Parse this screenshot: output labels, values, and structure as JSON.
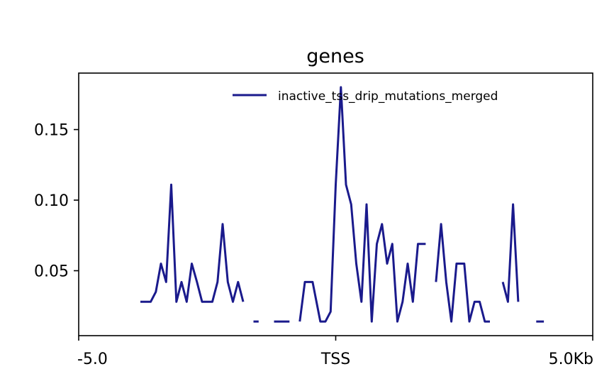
{
  "chart_data": {
    "type": "line",
    "title": "genes",
    "xlabel": "",
    "ylabel": "",
    "xlim": [
      -5.0,
      5.0
    ],
    "ylim": [
      0.004,
      0.19
    ],
    "x_ticks": [
      {
        "value": -5.0,
        "label": "-5.0"
      },
      {
        "value": 0,
        "label": "TSS"
      },
      {
        "value": 5.0,
        "label": "5.0Kb"
      }
    ],
    "y_ticks": [
      {
        "value": 0.05,
        "label": "0.05"
      },
      {
        "value": 0.1,
        "label": "0.10"
      },
      {
        "value": 0.15,
        "label": "0.15"
      }
    ],
    "legend_position": "top-right",
    "grid": false,
    "series": [
      {
        "name": "inactive_tss_drip_mutations_merged",
        "color": "#1a1a8c",
        "segments": [
          [
            [
              -3.8,
              0.028
            ],
            [
              -3.6,
              0.028
            ],
            [
              -3.5,
              0.035
            ],
            [
              -3.4,
              0.055
            ],
            [
              -3.3,
              0.042
            ],
            [
              -3.2,
              0.111
            ],
            [
              -3.1,
              0.028
            ],
            [
              -3.0,
              0.042
            ],
            [
              -2.9,
              0.028
            ],
            [
              -2.8,
              0.055
            ],
            [
              -2.7,
              0.042
            ],
            [
              -2.6,
              0.028
            ],
            [
              -2.4,
              0.028
            ],
            [
              -2.3,
              0.042
            ],
            [
              -2.2,
              0.083
            ],
            [
              -2.1,
              0.042
            ],
            [
              -2.0,
              0.028
            ],
            [
              -1.9,
              0.042
            ],
            [
              -1.8,
              0.028
            ]
          ],
          [
            [
              -1.6,
              0.014
            ],
            [
              -1.5,
              0.014
            ]
          ],
          [
            [
              -1.2,
              0.014
            ],
            [
              -0.9,
              0.014
            ]
          ],
          [
            [
              -0.7,
              0.014
            ],
            [
              -0.6,
              0.042
            ],
            [
              -0.45,
              0.042
            ],
            [
              -0.3,
              0.014
            ],
            [
              -0.2,
              0.014
            ],
            [
              -0.1,
              0.021
            ],
            [
              0.0,
              0.111
            ],
            [
              0.1,
              0.18
            ],
            [
              0.2,
              0.111
            ],
            [
              0.3,
              0.097
            ],
            [
              0.4,
              0.055
            ],
            [
              0.5,
              0.028
            ],
            [
              0.6,
              0.097
            ],
            [
              0.7,
              0.014
            ],
            [
              0.8,
              0.069
            ],
            [
              0.9,
              0.083
            ],
            [
              1.0,
              0.055
            ],
            [
              1.1,
              0.069
            ],
            [
              1.2,
              0.014
            ],
            [
              1.3,
              0.028
            ],
            [
              1.4,
              0.055
            ],
            [
              1.5,
              0.028
            ],
            [
              1.6,
              0.069
            ],
            [
              1.75,
              0.069
            ]
          ],
          [
            [
              1.95,
              0.042
            ],
            [
              2.05,
              0.083
            ],
            [
              2.15,
              0.042
            ],
            [
              2.25,
              0.014
            ],
            [
              2.35,
              0.055
            ],
            [
              2.5,
              0.055
            ],
            [
              2.6,
              0.014
            ],
            [
              2.7,
              0.028
            ],
            [
              2.8,
              0.028
            ],
            [
              2.9,
              0.014
            ],
            [
              3.0,
              0.014
            ]
          ],
          [
            [
              3.25,
              0.042
            ],
            [
              3.35,
              0.028
            ],
            [
              3.45,
              0.097
            ],
            [
              3.55,
              0.028
            ]
          ],
          [
            [
              3.9,
              0.014
            ],
            [
              4.05,
              0.014
            ]
          ]
        ]
      }
    ]
  }
}
